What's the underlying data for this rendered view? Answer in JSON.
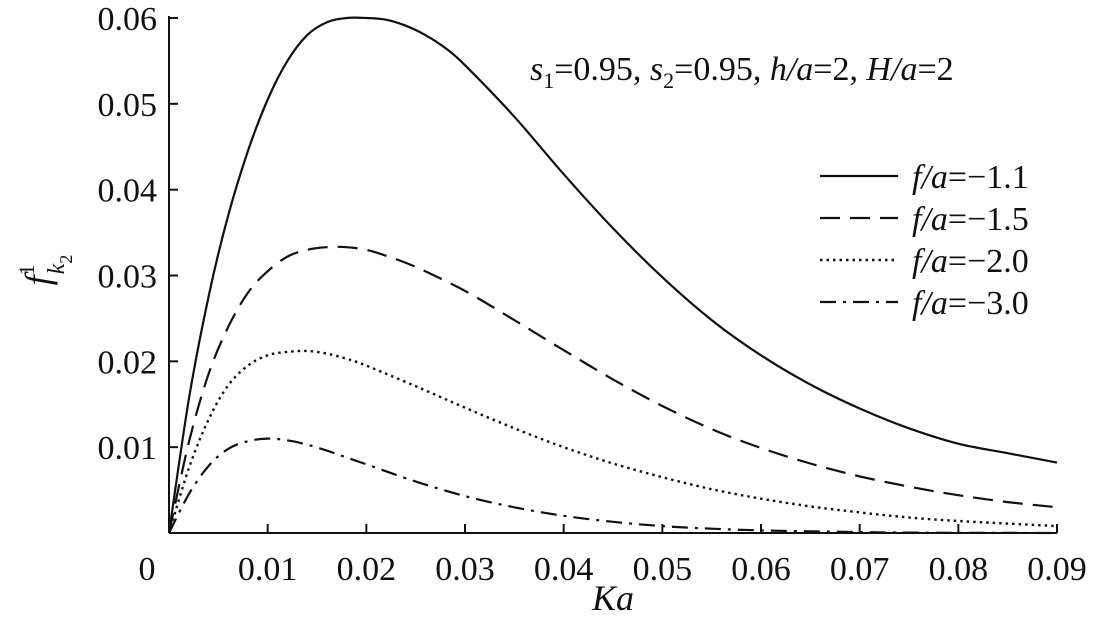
{
  "chart_data": {
    "type": "line",
    "xlabel": "Ka",
    "ylabel": {
      "base": "f",
      "sup": "1",
      "sub": "k",
      "subsub": "2"
    },
    "xlim": [
      0,
      0.09
    ],
    "ylim": [
      0,
      0.06
    ],
    "x_ticks": [
      0,
      0.01,
      0.02,
      0.03,
      0.04,
      0.05,
      0.06,
      0.07,
      0.08,
      0.09
    ],
    "x_tick_labels": [
      "0",
      "0.01",
      "0.02",
      "0.03",
      "0.04",
      "0.05",
      "0.06",
      "0.07",
      "0.08",
      "0.09"
    ],
    "y_ticks": [
      0.01,
      0.02,
      0.03,
      0.04,
      0.05,
      0.06
    ],
    "y_tick_labels": [
      "0.01",
      "0.02",
      "0.03",
      "0.04",
      "0.05",
      "0.06"
    ],
    "grid": false,
    "legend_position": "right",
    "annotation": {
      "s1_sym": "s",
      "s1_sub": "1",
      "s1_val": "=0.95, ",
      "s2_sym": "s",
      "s2_sub": "2",
      "s2_val": "=0.95, ",
      "h_sym": "h/a",
      "h_val": "=2, ",
      "H_sym": "H/a",
      "H_val": "=2"
    },
    "series": [
      {
        "name": "f/a=−1.1",
        "name_italic": "f/a",
        "name_value": "=−1.1",
        "style": "solid",
        "x": [
          0,
          0.002,
          0.004,
          0.006,
          0.008,
          0.01,
          0.012,
          0.014,
          0.016,
          0.018,
          0.02,
          0.022,
          0.024,
          0.026,
          0.028,
          0.03,
          0.035,
          0.04,
          0.045,
          0.05,
          0.055,
          0.06,
          0.065,
          0.07,
          0.075,
          0.08,
          0.085,
          0.09
        ],
        "y": [
          0,
          0.0155,
          0.0275,
          0.037,
          0.0445,
          0.0505,
          0.055,
          0.058,
          0.0595,
          0.06,
          0.06,
          0.0598,
          0.0591,
          0.058,
          0.0565,
          0.0545,
          0.0485,
          0.0418,
          0.0355,
          0.0298,
          0.0248,
          0.0207,
          0.0173,
          0.0145,
          0.0122,
          0.0104,
          0.0093,
          0.0082
        ]
      },
      {
        "name": "f/a=−1.5",
        "name_italic": "f/a",
        "name_value": "=−1.5",
        "style": "dashed",
        "x": [
          0,
          0.002,
          0.004,
          0.006,
          0.008,
          0.01,
          0.012,
          0.014,
          0.016,
          0.018,
          0.02,
          0.022,
          0.025,
          0.03,
          0.035,
          0.04,
          0.045,
          0.05,
          0.055,
          0.06,
          0.065,
          0.07,
          0.075,
          0.08,
          0.085,
          0.09
        ],
        "y": [
          0,
          0.0105,
          0.0185,
          0.024,
          0.028,
          0.0305,
          0.0322,
          0.033,
          0.0333,
          0.0333,
          0.033,
          0.0323,
          0.031,
          0.0282,
          0.0248,
          0.0213,
          0.0179,
          0.0148,
          0.0121,
          0.0099,
          0.0081,
          0.0066,
          0.0054,
          0.0044,
          0.0036,
          0.003
        ]
      },
      {
        "name": "f/a=−2.0",
        "name_italic": "f/a",
        "name_value": "=−2.0",
        "style": "dotted",
        "x": [
          0,
          0.002,
          0.004,
          0.006,
          0.008,
          0.01,
          0.012,
          0.014,
          0.016,
          0.018,
          0.02,
          0.025,
          0.03,
          0.035,
          0.04,
          0.045,
          0.05,
          0.055,
          0.06,
          0.065,
          0.07,
          0.075,
          0.08,
          0.085,
          0.09
        ],
        "y": [
          0,
          0.0075,
          0.0132,
          0.0172,
          0.0195,
          0.0207,
          0.0211,
          0.0212,
          0.0209,
          0.0203,
          0.0195,
          0.0171,
          0.0146,
          0.0122,
          0.01,
          0.0081,
          0.0065,
          0.0051,
          0.004,
          0.0031,
          0.0024,
          0.0018,
          0.0014,
          0.0011,
          0.0008
        ]
      },
      {
        "name": "f/a=−3.0",
        "name_italic": "f/a",
        "name_value": "=−3.0",
        "style": "dashdot",
        "x": [
          0,
          0.002,
          0.004,
          0.006,
          0.008,
          0.01,
          0.012,
          0.014,
          0.016,
          0.018,
          0.02,
          0.025,
          0.03,
          0.035,
          0.04,
          0.045,
          0.05,
          0.055,
          0.06,
          0.065,
          0.07,
          0.075,
          0.08,
          0.085,
          0.09
        ],
        "y": [
          0,
          0.0045,
          0.0078,
          0.0098,
          0.0107,
          0.011,
          0.0108,
          0.0103,
          0.0096,
          0.0088,
          0.008,
          0.006,
          0.0043,
          0.003,
          0.002,
          0.0013,
          0.0008,
          0.0005,
          0.0003,
          0.0002,
          0.0001,
          5e-05,
          2e-05,
          1e-05,
          0
        ]
      }
    ]
  }
}
